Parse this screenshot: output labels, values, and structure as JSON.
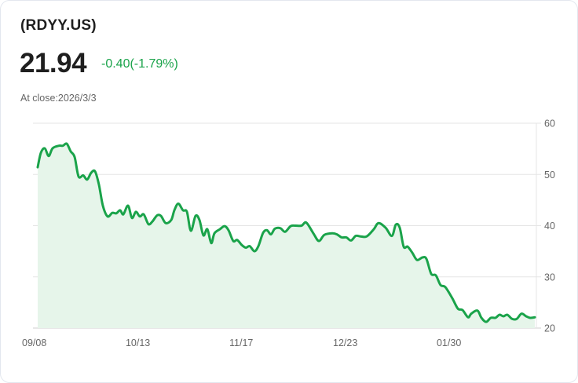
{
  "header": {
    "ticker": "(RDYY.US)",
    "price": "21.94",
    "change": "-0.40(-1.79%)",
    "close_label": "At close:2026/3/3"
  },
  "colors": {
    "line": "#1aa34a",
    "fill": "#e6f5ea",
    "grid": "#e5e5e5",
    "change": "#1aa34a",
    "text": "#1f1f1f",
    "muted": "#666666"
  },
  "chart_data": {
    "type": "area",
    "title": "(RDYY.US)",
    "xlabel": "",
    "ylabel": "",
    "ylim": [
      20,
      60
    ],
    "yticks": [
      60,
      50,
      40,
      30,
      20
    ],
    "xtick_labels": [
      "09/08",
      "10/13",
      "11/17",
      "12/23",
      "01/30"
    ],
    "xtick_positions": [
      0,
      0.2085,
      0.4171,
      0.6256,
      0.8341
    ],
    "grid": true,
    "y_axis_position": "right",
    "legend": null,
    "x": [
      0.0,
      0.0063,
      0.0142,
      0.0221,
      0.03,
      0.0427,
      0.0506,
      0.0585,
      0.0664,
      0.0743,
      0.0822,
      0.0916,
      0.0995,
      0.1074,
      0.1153,
      0.1232,
      0.1311,
      0.1406,
      0.1501,
      0.158,
      0.1659,
      0.1722,
      0.1817,
      0.1896,
      0.1975,
      0.2054,
      0.2133,
      0.2227,
      0.2306,
      0.2401,
      0.248,
      0.2575,
      0.2686,
      0.2749,
      0.2828,
      0.2923,
      0.3002,
      0.3081,
      0.3175,
      0.3254,
      0.3333,
      0.3412,
      0.3491,
      0.3555,
      0.3665,
      0.376,
      0.3839,
      0.3934,
      0.4013,
      0.4107,
      0.4186,
      0.4265,
      0.436,
      0.4439,
      0.4534,
      0.4613,
      0.4692,
      0.4771,
      0.4882,
      0.4976,
      0.5087,
      0.5182,
      0.5308,
      0.5403,
      0.5545,
      0.5656,
      0.5766,
      0.5924,
      0.6019,
      0.6114,
      0.6209,
      0.6303,
      0.6398,
      0.6493,
      0.6619,
      0.6761,
      0.6856,
      0.6998,
      0.7125,
      0.7204,
      0.7283,
      0.7362,
      0.7441,
      0.7536,
      0.763,
      0.7741,
      0.782,
      0.7915,
      0.8009,
      0.8104,
      0.8199,
      0.8341,
      0.8452,
      0.8547,
      0.8657,
      0.872,
      0.8847,
      0.8926,
      0.9021,
      0.9115,
      0.921,
      0.9289,
      0.9368,
      0.9447,
      0.9542,
      0.9637,
      0.9731,
      0.9826,
      0.9905,
      1.0
    ],
    "values": [
      51.4,
      54.2,
      55.1,
      53.6,
      55.1,
      55.6,
      55.6,
      56.0,
      54.5,
      53.4,
      49.6,
      49.8,
      49.0,
      50.3,
      50.6,
      48.0,
      43.9,
      41.8,
      42.5,
      42.4,
      43.0,
      42.2,
      43.9,
      41.5,
      42.7,
      41.8,
      42.2,
      40.3,
      40.8,
      42.0,
      41.9,
      40.5,
      41.1,
      43.0,
      44.3,
      43.0,
      42.7,
      39.0,
      41.9,
      41.1,
      38.1,
      39.3,
      36.6,
      38.5,
      39.3,
      39.9,
      39.1,
      37.0,
      37.2,
      36.2,
      35.7,
      36.0,
      35.0,
      36.0,
      38.6,
      39.1,
      38.3,
      39.4,
      39.5,
      38.8,
      39.9,
      40.0,
      40.0,
      40.6,
      38.5,
      37.0,
      38.2,
      38.5,
      38.3,
      37.7,
      37.7,
      37.1,
      38.0,
      37.9,
      37.9,
      39.3,
      40.5,
      39.6,
      38.0,
      40.2,
      39.6,
      35.9,
      35.9,
      34.7,
      33.3,
      33.8,
      33.5,
      30.6,
      30.3,
      28.4,
      28.0,
      25.8,
      23.8,
      23.5,
      22.1,
      22.8,
      23.4,
      22.0,
      21.2,
      22.0,
      22.0,
      22.6,
      22.3,
      22.6,
      21.8,
      21.8,
      22.8,
      22.3,
      22.0,
      22.1
    ]
  }
}
